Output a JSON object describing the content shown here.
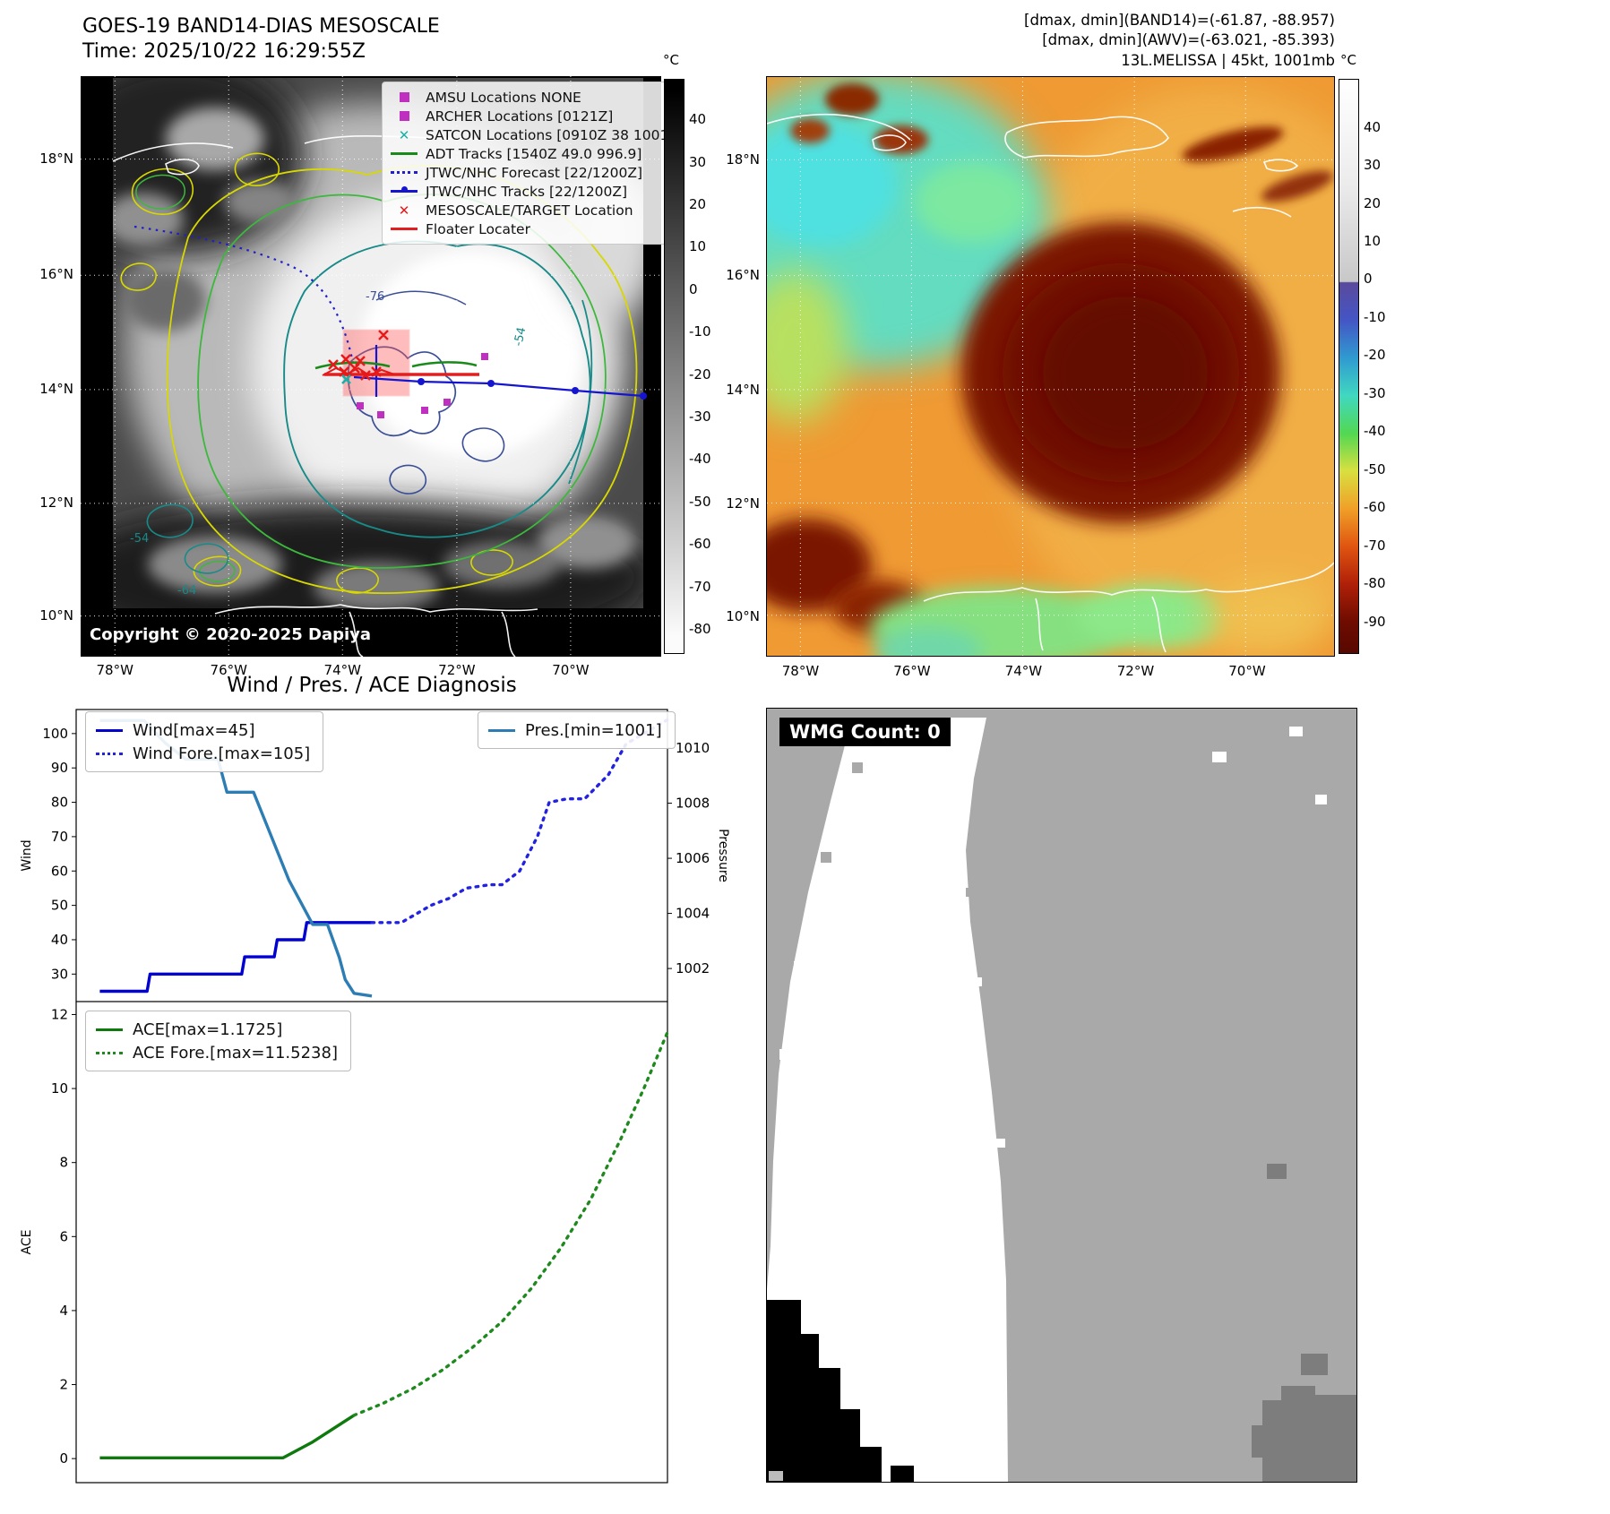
{
  "panels": {
    "band14": {
      "title": "GOES-19 BAND14-DIAS MESOSCALE",
      "time": "Time: 2025/10/22 16:29:55Z",
      "copyright": "Copyright © 2020-2025 Dapiya",
      "lat_ticks": [
        "18°N",
        "16°N",
        "14°N",
        "12°N",
        "10°N"
      ],
      "lon_ticks": [
        "78°W",
        "76°W",
        "74°W",
        "72°W",
        "70°W"
      ],
      "colorbar": {
        "unit": "°C",
        "ticks": [
          "40",
          "30",
          "20",
          "10",
          "0",
          "-10",
          "-20",
          "-30",
          "-40",
          "-50",
          "-60",
          "-70",
          "-80"
        ]
      },
      "contour_labels": [
        "-76",
        "-54",
        "-64",
        "-54"
      ],
      "legend": [
        {
          "label": "AMSU Locations NONE",
          "marker": "square",
          "color": "#c030c0"
        },
        {
          "label": "ARCHER Locations [0121Z]",
          "marker": "square",
          "color": "#c030c0"
        },
        {
          "label": "SATCON Locations [0910Z 38 1001]",
          "marker": "x",
          "color": "#18b0a8"
        },
        {
          "label": "ADT Tracks [1540Z 49.0 996.9]",
          "marker": "line",
          "color": "#1a8a1a"
        },
        {
          "label": "JTWC/NHC Forecast [22/1200Z]",
          "marker": "dotted",
          "color": "#2020c8"
        },
        {
          "label": "JTWC/NHC Tracks [22/1200Z]",
          "marker": "line-dot",
          "color": "#1515d0"
        },
        {
          "label": "MESOSCALE/TARGET Location",
          "marker": "x",
          "color": "#e81818"
        },
        {
          "label": "Floater Locater",
          "marker": "line",
          "color": "#e02020"
        }
      ]
    },
    "awv": {
      "header_lines": [
        "[dmax, dmin](BAND14)=(-61.87, -88.957)",
        "[dmax, dmin](AWV)=(-63.021, -85.393)",
        "13L.MELISSA | 45kt, 1001mb"
      ],
      "lat_ticks": [
        "18°N",
        "16°N",
        "14°N",
        "12°N",
        "10°N"
      ],
      "lon_ticks": [
        "78°W",
        "76°W",
        "74°W",
        "72°W",
        "70°W"
      ],
      "colorbar": {
        "unit": "°C",
        "ticks": [
          "40",
          "30",
          "20",
          "10",
          "0",
          "-10",
          "-20",
          "-30",
          "-40",
          "-50",
          "-60",
          "-70",
          "-80",
          "-90"
        ]
      }
    },
    "diagnosis": {
      "title": "Wind / Pres. / ACE Diagnosis"
    },
    "wmg": {
      "label": "WMG Count: 0"
    }
  },
  "chart_data": [
    {
      "type": "line",
      "title": "Wind / Pres. / ACE Diagnosis",
      "ylabel_left": "Wind",
      "ylabel_right": "Pressure",
      "ylim_left": [
        22,
        107
      ],
      "ylim_right": [
        1000.8,
        1011.4
      ],
      "yticks_left": [
        30,
        40,
        50,
        60,
        70,
        80,
        90,
        100
      ],
      "yticks_right": [
        1002,
        1004,
        1006,
        1008,
        1010
      ],
      "x_range": [
        0,
        1
      ],
      "grid": false,
      "series": [
        {
          "name": "Wind[max=45]",
          "axis": "left",
          "style": "solid",
          "color": "#0000d0",
          "x": [
            0.04,
            0.12,
            0.125,
            0.28,
            0.285,
            0.335,
            0.34,
            0.385,
            0.39,
            0.5
          ],
          "y": [
            25,
            25,
            30,
            30,
            35,
            35,
            40,
            40,
            45,
            45
          ]
        },
        {
          "name": "Wind Fore.[max=105]",
          "axis": "left",
          "style": "dotted",
          "color": "#2222e0",
          "x": [
            0.5,
            0.55,
            0.57,
            0.6,
            0.63,
            0.66,
            0.7,
            0.72,
            0.75,
            0.78,
            0.8,
            0.83,
            0.86,
            0.9,
            0.93,
            0.96,
            1.0
          ],
          "y": [
            45,
            45,
            47,
            50,
            52,
            55,
            56,
            56,
            60,
            70,
            80,
            81,
            81,
            88,
            97,
            100,
            104
          ]
        },
        {
          "name": "Pres.[min=1001]",
          "axis": "right",
          "style": "solid",
          "color": "#2d7db5",
          "x": [
            0.04,
            0.115,
            0.15,
            0.185,
            0.24,
            0.255,
            0.3,
            0.315,
            0.36,
            0.4,
            0.425,
            0.445,
            0.455,
            0.47,
            0.5
          ],
          "y": [
            1011,
            1011,
            1010.2,
            1009.6,
            1009.6,
            1008.4,
            1008.4,
            1007.6,
            1005.2,
            1003.6,
            1003.6,
            1002.4,
            1001.6,
            1001.1,
            1001
          ]
        }
      ]
    },
    {
      "type": "line",
      "ylabel_left": "ACE",
      "ylim_left": [
        -0.65,
        12.35
      ],
      "yticks_left": [
        0,
        2,
        4,
        6,
        8,
        10,
        12
      ],
      "x_range": [
        0,
        1
      ],
      "grid": false,
      "series": [
        {
          "name": "ACE[max=1.1725]",
          "axis": "left",
          "style": "solid",
          "color": "#0e7a0e",
          "x": [
            0.04,
            0.35,
            0.4,
            0.47
          ],
          "y": [
            0.02,
            0.02,
            0.45,
            1.17
          ]
        },
        {
          "name": "ACE Fore.[max=11.5238]",
          "axis": "left",
          "style": "dotted",
          "color": "#1e8a1e",
          "x": [
            0.47,
            0.52,
            0.57,
            0.62,
            0.67,
            0.72,
            0.77,
            0.82,
            0.87,
            0.92,
            0.96,
            1.0
          ],
          "y": [
            1.17,
            1.5,
            1.9,
            2.4,
            3.0,
            3.7,
            4.6,
            5.7,
            7.0,
            8.6,
            10.0,
            11.52
          ]
        }
      ]
    }
  ]
}
